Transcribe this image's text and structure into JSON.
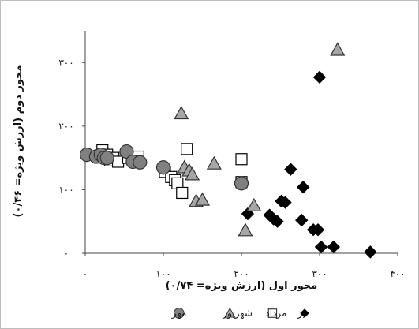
{
  "chart_data": {
    "type": "scatter",
    "xlabel": "محور اول (ارزش ویژه= ۰/۷۴)",
    "ylabel": "محور دوم (ارزش ویژه= ۰/۴۶)",
    "xlim": [
      0,
      400
    ],
    "ylim": [
      0,
      350
    ],
    "x_ticks": [
      0,
      100,
      200,
      300,
      400
    ],
    "y_ticks": [
      0,
      100,
      200,
      300
    ],
    "x_tick_labels": [
      "۰",
      "۱۰۰",
      "۲۰۰",
      "۳۰۰",
      "۴۰۰"
    ],
    "y_tick_labels": [
      "۰",
      "۱۰۰",
      "۲۰۰",
      "۳۰۰"
    ],
    "grid": false,
    "legend_position": "bottom",
    "series": [
      {
        "name": "تیر",
        "marker": "diamond",
        "color": "#000000",
        "points": [
          [
            300,
            277
          ],
          [
            263,
            132
          ],
          [
            208,
            62
          ],
          [
            236,
            60
          ],
          [
            241,
            54
          ],
          [
            246,
            50
          ],
          [
            251,
            82
          ],
          [
            256,
            80
          ],
          [
            279,
            104
          ],
          [
            277,
            52
          ],
          [
            292,
            37
          ],
          [
            298,
            37
          ],
          [
            302,
            10
          ],
          [
            318,
            10
          ],
          [
            365,
            2
          ]
        ]
      },
      {
        "name": "مرداد",
        "marker": "square",
        "color": "#ffffff",
        "points": [
          [
            22,
            162
          ],
          [
            28,
            155
          ],
          [
            32,
            146
          ],
          [
            36,
            150
          ],
          [
            42,
            144
          ],
          [
            55,
            150
          ],
          [
            68,
            152
          ],
          [
            102,
            128
          ],
          [
            110,
            120
          ],
          [
            115,
            115
          ],
          [
            118,
            110
          ],
          [
            124,
            95
          ],
          [
            130,
            164
          ],
          [
            200,
            148
          ],
          [
            200,
            112
          ]
        ]
      },
      {
        "name": "شهریور",
        "marker": "triangle",
        "color": "#a6a6a6",
        "points": [
          [
            323,
            320
          ],
          [
            123,
            220
          ],
          [
            127,
            135
          ],
          [
            133,
            130
          ],
          [
            137,
            124
          ],
          [
            142,
            82
          ],
          [
            150,
            84
          ],
          [
            165,
            141
          ],
          [
            205,
            36
          ],
          [
            216,
            75
          ]
        ]
      },
      {
        "name": "مهر",
        "marker": "circle",
        "color": "#808080",
        "points": [
          [
            2,
            155
          ],
          [
            14,
            152
          ],
          [
            20,
            155
          ],
          [
            24,
            150
          ],
          [
            28,
            150
          ],
          [
            53,
            160
          ],
          [
            61,
            144
          ],
          [
            70,
            143
          ],
          [
            100,
            135
          ],
          [
            200,
            110
          ]
        ]
      }
    ]
  }
}
